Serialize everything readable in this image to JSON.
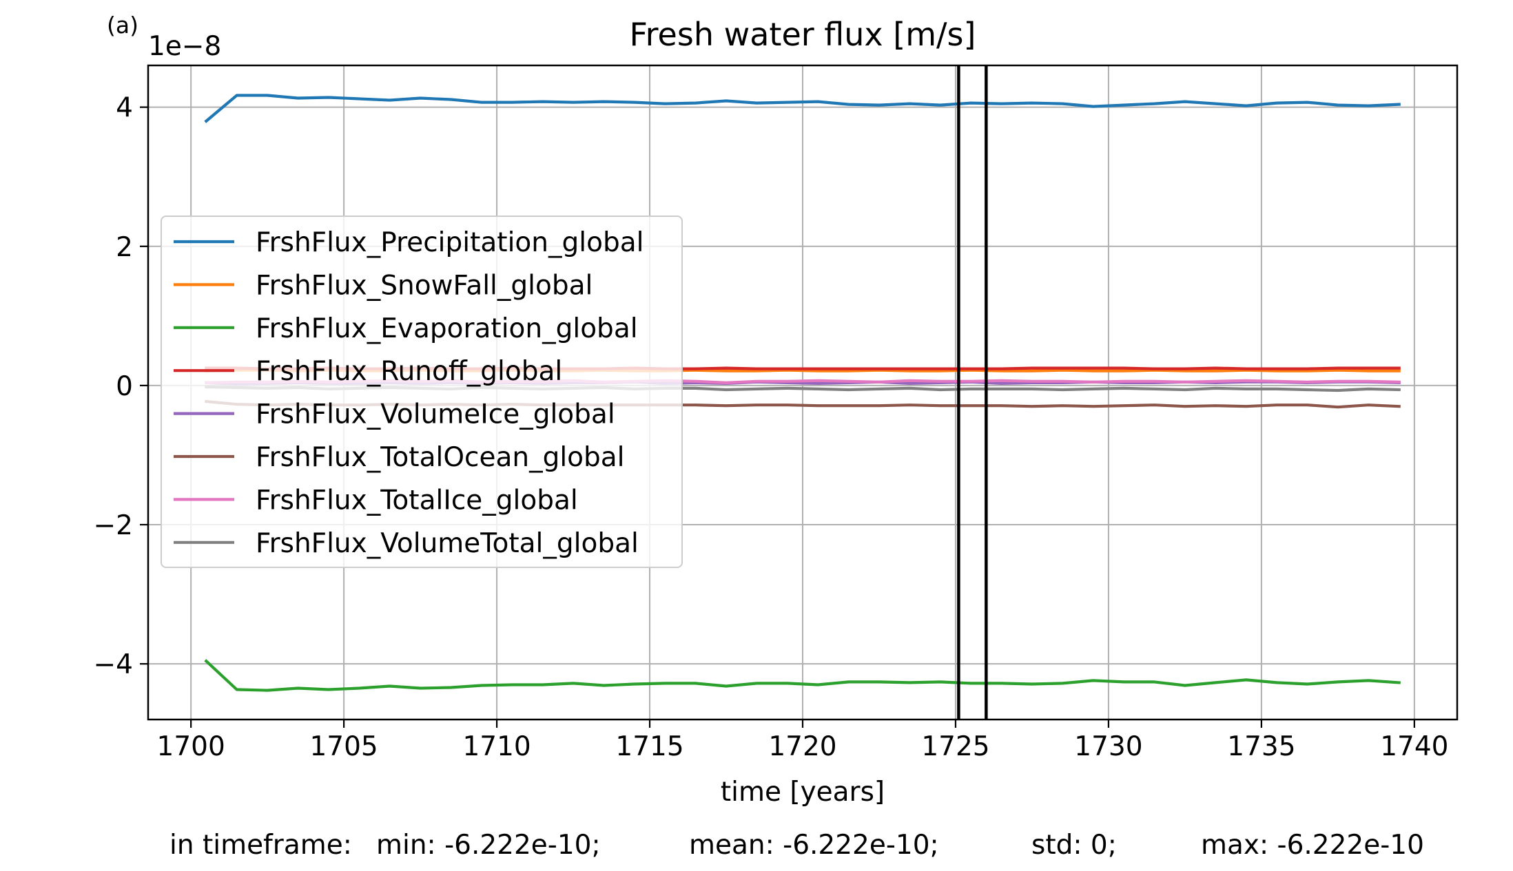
{
  "chart_data": {
    "type": "line",
    "panel_label": "(a)",
    "title": "Fresh water flux [m/s]",
    "xlabel": "time [years]",
    "ylabel": "",
    "y_scale_label": "1e−8",
    "xlim": [
      1698.6,
      1741.4
    ],
    "ylim": [
      -4.8,
      4.6
    ],
    "xticks": [
      1700,
      1705,
      1710,
      1715,
      1720,
      1725,
      1730,
      1735,
      1740
    ],
    "xtick_labels": [
      "1700",
      "1705",
      "1710",
      "1715",
      "1720",
      "1725",
      "1730",
      "1735",
      "1740"
    ],
    "yticks": [
      -4,
      -2,
      0,
      2,
      4
    ],
    "ytick_labels": [
      "−4",
      "−2",
      "0",
      "2",
      "4"
    ],
    "grid": true,
    "legend_position": "center-left",
    "vlines": [
      1725.1,
      1726.0
    ],
    "x": [
      1700.5,
      1701.5,
      1702.5,
      1703.5,
      1704.5,
      1705.5,
      1706.5,
      1707.5,
      1708.5,
      1709.5,
      1710.5,
      1711.5,
      1712.5,
      1713.5,
      1714.5,
      1715.5,
      1716.5,
      1717.5,
      1718.5,
      1719.5,
      1720.5,
      1721.5,
      1722.5,
      1723.5,
      1724.5,
      1725.5,
      1726.5,
      1727.5,
      1728.5,
      1729.5,
      1730.5,
      1731.5,
      1732.5,
      1733.5,
      1734.5,
      1735.5,
      1736.5,
      1737.5,
      1738.5,
      1739.5
    ],
    "series": [
      {
        "name": "FrshFlux_Precipitation_global",
        "color": "#1f77b4",
        "values": [
          3.8,
          4.17,
          4.17,
          4.13,
          4.14,
          4.12,
          4.1,
          4.13,
          4.11,
          4.07,
          4.07,
          4.08,
          4.07,
          4.08,
          4.07,
          4.05,
          4.06,
          4.09,
          4.06,
          4.07,
          4.08,
          4.04,
          4.03,
          4.05,
          4.03,
          4.06,
          4.05,
          4.06,
          4.05,
          4.01,
          4.03,
          4.05,
          4.08,
          4.05,
          4.02,
          4.06,
          4.07,
          4.03,
          4.02,
          4.04
        ]
      },
      {
        "name": "FrshFlux_SnowFall_global",
        "color": "#ff7f0e",
        "values": [
          0.21,
          0.22,
          0.22,
          0.21,
          0.22,
          0.21,
          0.21,
          0.22,
          0.21,
          0.21,
          0.22,
          0.21,
          0.21,
          0.22,
          0.21,
          0.21,
          0.22,
          0.21,
          0.21,
          0.22,
          0.21,
          0.21,
          0.22,
          0.21,
          0.21,
          0.22,
          0.21,
          0.21,
          0.22,
          0.21,
          0.21,
          0.22,
          0.21,
          0.21,
          0.22,
          0.21,
          0.21,
          0.22,
          0.21,
          0.21
        ]
      },
      {
        "name": "FrshFlux_Evaporation_global",
        "color": "#2ca02c",
        "values": [
          -3.96,
          -4.37,
          -4.38,
          -4.35,
          -4.37,
          -4.35,
          -4.32,
          -4.35,
          -4.34,
          -4.31,
          -4.3,
          -4.3,
          -4.28,
          -4.31,
          -4.29,
          -4.28,
          -4.28,
          -4.32,
          -4.28,
          -4.28,
          -4.3,
          -4.26,
          -4.26,
          -4.27,
          -4.26,
          -4.28,
          -4.28,
          -4.29,
          -4.28,
          -4.24,
          -4.26,
          -4.26,
          -4.31,
          -4.27,
          -4.23,
          -4.27,
          -4.29,
          -4.26,
          -4.24,
          -4.27
        ]
      },
      {
        "name": "FrshFlux_Runoff_global",
        "color": "#d62728",
        "values": [
          0.25,
          0.25,
          0.24,
          0.24,
          0.25,
          0.24,
          0.24,
          0.25,
          0.24,
          0.24,
          0.25,
          0.24,
          0.24,
          0.24,
          0.25,
          0.24,
          0.24,
          0.25,
          0.24,
          0.24,
          0.24,
          0.24,
          0.24,
          0.24,
          0.24,
          0.24,
          0.24,
          0.25,
          0.25,
          0.25,
          0.25,
          0.24,
          0.24,
          0.25,
          0.24,
          0.24,
          0.24,
          0.25,
          0.25,
          0.25
        ]
      },
      {
        "name": "FrshFlux_VolumeIce_global",
        "color": "#9467bd",
        "values": [
          0.04,
          0.02,
          0.03,
          0.04,
          0.03,
          0.03,
          0.04,
          0.03,
          0.04,
          0.03,
          0.04,
          0.03,
          0.04,
          0.04,
          0.05,
          0.03,
          0.04,
          0.03,
          0.05,
          0.04,
          0.03,
          0.04,
          0.05,
          0.03,
          0.04,
          0.05,
          0.03,
          0.04,
          0.04,
          0.05,
          0.04,
          0.04,
          0.05,
          0.04,
          0.05,
          0.05,
          0.04,
          0.05,
          0.05,
          0.04
        ]
      },
      {
        "name": "FrshFlux_TotalOcean_global",
        "color": "#8c564b",
        "values": [
          -0.23,
          -0.27,
          -0.28,
          -0.27,
          -0.28,
          -0.28,
          -0.27,
          -0.28,
          -0.27,
          -0.28,
          -0.27,
          -0.28,
          -0.28,
          -0.28,
          -0.28,
          -0.28,
          -0.28,
          -0.29,
          -0.28,
          -0.28,
          -0.29,
          -0.29,
          -0.29,
          -0.28,
          -0.29,
          -0.29,
          -0.29,
          -0.3,
          -0.29,
          -0.3,
          -0.29,
          -0.28,
          -0.3,
          -0.29,
          -0.3,
          -0.28,
          -0.28,
          -0.31,
          -0.28,
          -0.3
        ]
      },
      {
        "name": "FrshFlux_TotalIce_global",
        "color": "#e377c2",
        "values": [
          0.04,
          0.05,
          0.05,
          0.06,
          0.05,
          0.06,
          0.07,
          0.06,
          0.07,
          0.05,
          0.06,
          0.06,
          0.07,
          0.05,
          0.06,
          0.07,
          0.06,
          0.04,
          0.06,
          0.06,
          0.07,
          0.06,
          0.05,
          0.07,
          0.06,
          0.06,
          0.07,
          0.06,
          0.06,
          0.05,
          0.06,
          0.06,
          0.05,
          0.06,
          0.07,
          0.06,
          0.05,
          0.06,
          0.06,
          0.05
        ]
      },
      {
        "name": "FrshFlux_VolumeTotal_global",
        "color": "#7f7f7f",
        "values": [
          -0.02,
          -0.03,
          -0.04,
          -0.03,
          -0.05,
          -0.04,
          -0.03,
          -0.04,
          -0.05,
          -0.03,
          -0.04,
          -0.05,
          -0.04,
          -0.03,
          -0.05,
          -0.04,
          -0.04,
          -0.06,
          -0.05,
          -0.04,
          -0.05,
          -0.06,
          -0.05,
          -0.04,
          -0.06,
          -0.05,
          -0.05,
          -0.05,
          -0.06,
          -0.05,
          -0.04,
          -0.05,
          -0.06,
          -0.04,
          -0.05,
          -0.05,
          -0.06,
          -0.07,
          -0.05,
          -0.06
        ]
      }
    ]
  },
  "stats": {
    "prefix": "in timeframe:",
    "min": "min: -6.222e-10;",
    "mean": "mean: -6.222e-10;",
    "std": "std: 0;",
    "max": "max: -6.222e-10"
  }
}
